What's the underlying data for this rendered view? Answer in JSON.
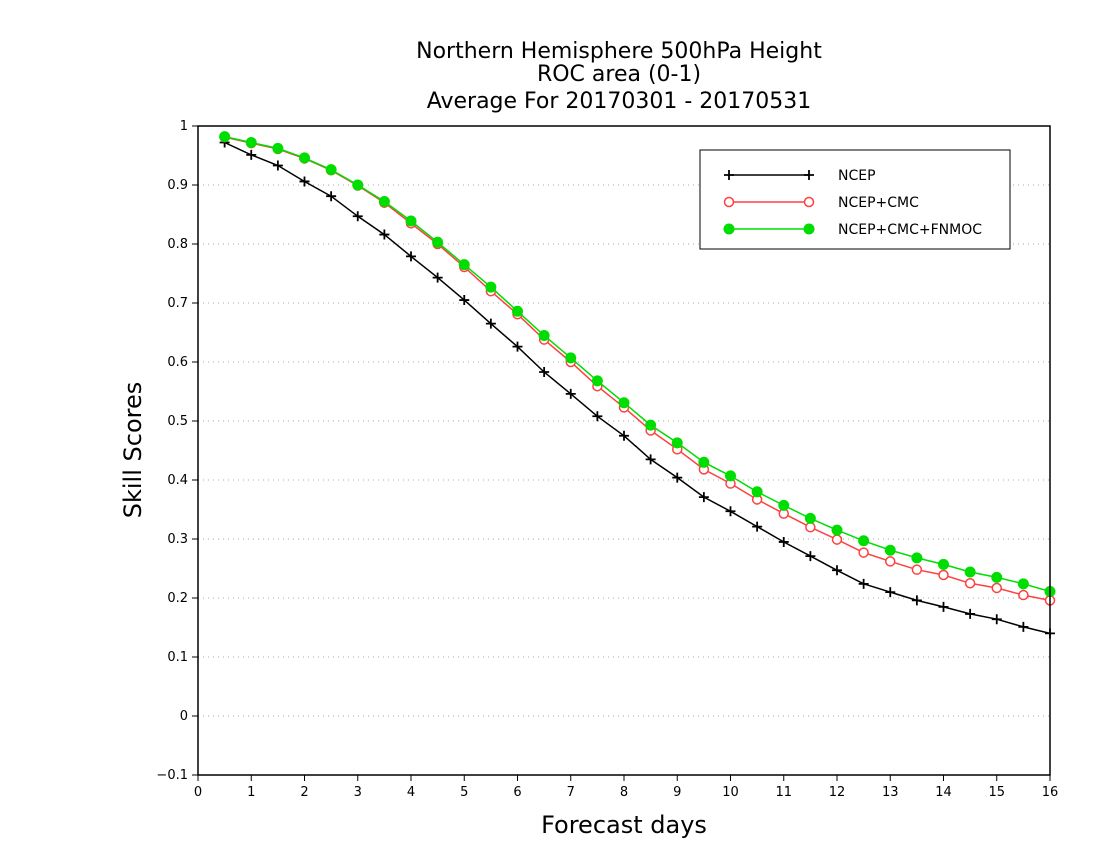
{
  "chart_data": {
    "type": "line",
    "title_lines": [
      "Northern Hemisphere 500hPa Height",
      "ROC area (0-1)",
      "Average For 20170301 - 20170531"
    ],
    "xlabel": "Forecast days",
    "ylabel": "Skill Scores",
    "xlim": [
      0,
      16
    ],
    "ylim": [
      -0.1,
      1
    ],
    "xticks": [
      "0",
      "1",
      "2",
      "3",
      "4",
      "5",
      "6",
      "7",
      "8",
      "9",
      "10",
      "11",
      "12",
      "13",
      "14",
      "15",
      "16"
    ],
    "yticks": [
      "−0.1",
      "0",
      "0.1",
      "0.2",
      "0.3",
      "0.4",
      "0.5",
      "0.6",
      "0.7",
      "0.8",
      "0.9",
      "1"
    ],
    "grid": true,
    "legend_position": "top-right",
    "x": [
      0.5,
      1,
      1.5,
      2,
      2.5,
      3,
      3.5,
      4,
      4.5,
      5,
      5.5,
      6,
      6.5,
      7,
      7.5,
      8,
      8.5,
      9,
      9.5,
      10,
      10.5,
      11,
      11.5,
      12,
      12.5,
      13,
      13.5,
      14,
      14.5,
      15,
      15.5,
      16
    ],
    "series": [
      {
        "name": "NCEP",
        "color": "#000000",
        "marker": "plus",
        "values": [
          0.972,
          0.951,
          0.933,
          0.906,
          0.881,
          0.847,
          0.816,
          0.779,
          0.743,
          0.705,
          0.665,
          0.626,
          0.583,
          0.546,
          0.508,
          0.475,
          0.435,
          0.404,
          0.371,
          0.347,
          0.321,
          0.295,
          0.271,
          0.247,
          0.224,
          0.21,
          0.196,
          0.185,
          0.173,
          0.164,
          0.151,
          0.14
        ]
      },
      {
        "name": "NCEP+CMC",
        "color": "#ff4040",
        "marker": "open-circle",
        "values": [
          0.981,
          0.971,
          0.961,
          0.945,
          0.925,
          0.899,
          0.87,
          0.835,
          0.8,
          0.761,
          0.72,
          0.681,
          0.638,
          0.6,
          0.559,
          0.523,
          0.484,
          0.452,
          0.418,
          0.394,
          0.367,
          0.343,
          0.32,
          0.299,
          0.277,
          0.262,
          0.248,
          0.239,
          0.225,
          0.217,
          0.205,
          0.196
        ]
      },
      {
        "name": "NCEP+CMC+FNMOC",
        "color": "#00dd00",
        "marker": "filled-circle",
        "values": [
          0.982,
          0.972,
          0.962,
          0.946,
          0.926,
          0.9,
          0.872,
          0.839,
          0.803,
          0.765,
          0.727,
          0.686,
          0.645,
          0.607,
          0.568,
          0.531,
          0.493,
          0.463,
          0.43,
          0.407,
          0.38,
          0.357,
          0.335,
          0.315,
          0.297,
          0.281,
          0.268,
          0.257,
          0.244,
          0.235,
          0.224,
          0.211
        ]
      }
    ]
  }
}
